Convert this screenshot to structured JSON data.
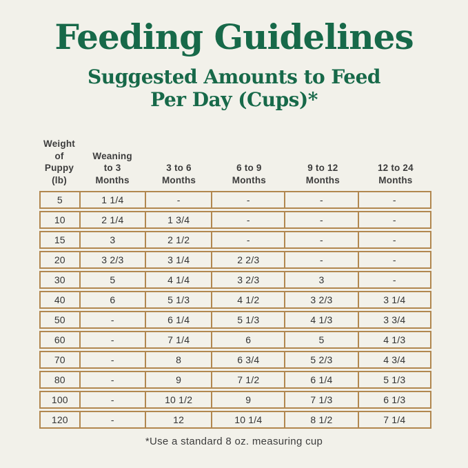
{
  "page": {
    "title": "Feeding Guidelines",
    "subtitle_line1": "Suggested Amounts to Feed",
    "subtitle_line2": "Per Day (Cups)*",
    "footnote": "*Use a standard 8 oz. measuring cup"
  },
  "colors": {
    "background": "#f2f1ea",
    "title_green": "#176949",
    "table_border": "#b1874f",
    "text_dark": "#3c3c3c"
  },
  "table": {
    "column_headers": [
      [
        "Weight",
        "of Puppy",
        "(lb)"
      ],
      [
        "Weaning",
        "to 3",
        "Months"
      ],
      [
        "3 to 6",
        "Months"
      ],
      [
        "6 to 9",
        "Months"
      ],
      [
        "9 to 12",
        "Months"
      ],
      [
        "12 to 24",
        "Months"
      ]
    ],
    "rows": [
      [
        "5",
        "1 1/4",
        "-",
        "-",
        "-",
        "-"
      ],
      [
        "10",
        "2 1/4",
        "1 3/4",
        "-",
        "-",
        "-"
      ],
      [
        "15",
        "3",
        "2 1/2",
        "-",
        "-",
        "-"
      ],
      [
        "20",
        "3 2/3",
        "3 1/4",
        "2 2/3",
        "-",
        "-"
      ],
      [
        "30",
        "5",
        "4 1/4",
        "3 2/3",
        "3",
        "-"
      ],
      [
        "40",
        "6",
        "5 1/3",
        "4 1/2",
        "3 2/3",
        "3 1/4"
      ],
      [
        "50",
        "-",
        "6 1/4",
        "5 1/3",
        "4 1/3",
        "3 3/4"
      ],
      [
        "60",
        "-",
        "7 1/4",
        "6",
        "5",
        "4 1/3"
      ],
      [
        "70",
        "-",
        "8",
        "6 3/4",
        "5 2/3",
        "4 3/4"
      ],
      [
        "80",
        "-",
        "9",
        "7 1/2",
        "6 1/4",
        "5 1/3"
      ],
      [
        "100",
        "-",
        "10 1/2",
        "9",
        "7 1/3",
        "6 1/3"
      ],
      [
        "120",
        "-",
        "12",
        "10 1/4",
        "8 1/2",
        "7 1/4"
      ]
    ]
  }
}
